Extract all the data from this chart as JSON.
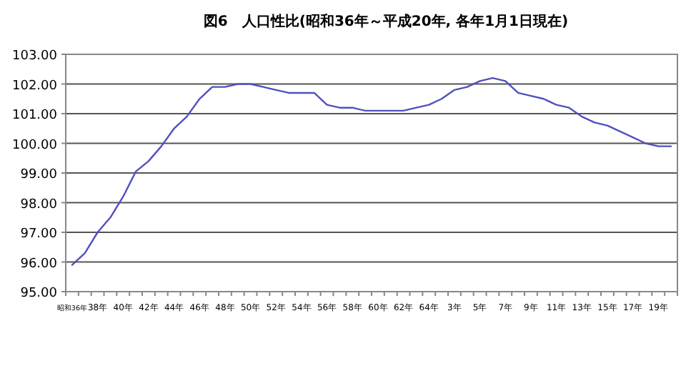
{
  "chart_data": {
    "type": "line",
    "title": "図6　人口性比(昭和36年～平成20年, 各年1月1日現在)",
    "categories": [
      "昭和36年",
      null,
      "38年",
      null,
      "40年",
      null,
      "42年",
      null,
      "44年",
      null,
      "46年",
      null,
      "48年",
      null,
      "50年",
      null,
      "52年",
      null,
      "54年",
      null,
      "56年",
      null,
      "58年",
      null,
      "60年",
      null,
      "62年",
      null,
      "64年",
      null,
      "3年",
      null,
      "5年",
      null,
      "7年",
      null,
      "9年",
      null,
      "11年",
      null,
      "13年",
      null,
      "15年",
      null,
      "17年",
      null,
      "19年",
      null
    ],
    "series": [
      {
        "color": "#5050c0",
        "values": [
          95.9,
          96.3,
          97.0,
          97.5,
          98.2,
          99.05,
          99.4,
          99.9,
          100.5,
          100.9,
          101.5,
          101.9,
          101.9,
          102.0,
          102.0,
          101.9,
          101.8,
          101.7,
          101.7,
          101.7,
          101.3,
          101.2,
          101.2,
          101.1,
          101.1,
          101.1,
          101.1,
          101.2,
          101.3,
          101.5,
          101.8,
          101.9,
          102.1,
          102.2,
          102.1,
          101.7,
          101.6,
          101.5,
          101.3,
          101.2,
          100.9,
          100.7,
          100.6,
          100.4,
          100.2,
          100.0,
          99.9,
          99.9
        ]
      }
    ],
    "ylim": [
      95,
      103
    ],
    "yticks": [
      {
        "value": 95,
        "label": "95.00"
      },
      {
        "value": 96,
        "label": "96.00"
      },
      {
        "value": 97,
        "label": "97.00"
      },
      {
        "value": 98,
        "label": "98.00"
      },
      {
        "value": 99,
        "label": "99.00"
      },
      {
        "value": 100,
        "label": "100.00"
      },
      {
        "value": 101,
        "label": "101.00"
      },
      {
        "value": 102,
        "label": "102.00"
      },
      {
        "value": 103,
        "label": "103.00"
      }
    ],
    "grid": "y",
    "marker": "none",
    "line_style": "solid"
  }
}
